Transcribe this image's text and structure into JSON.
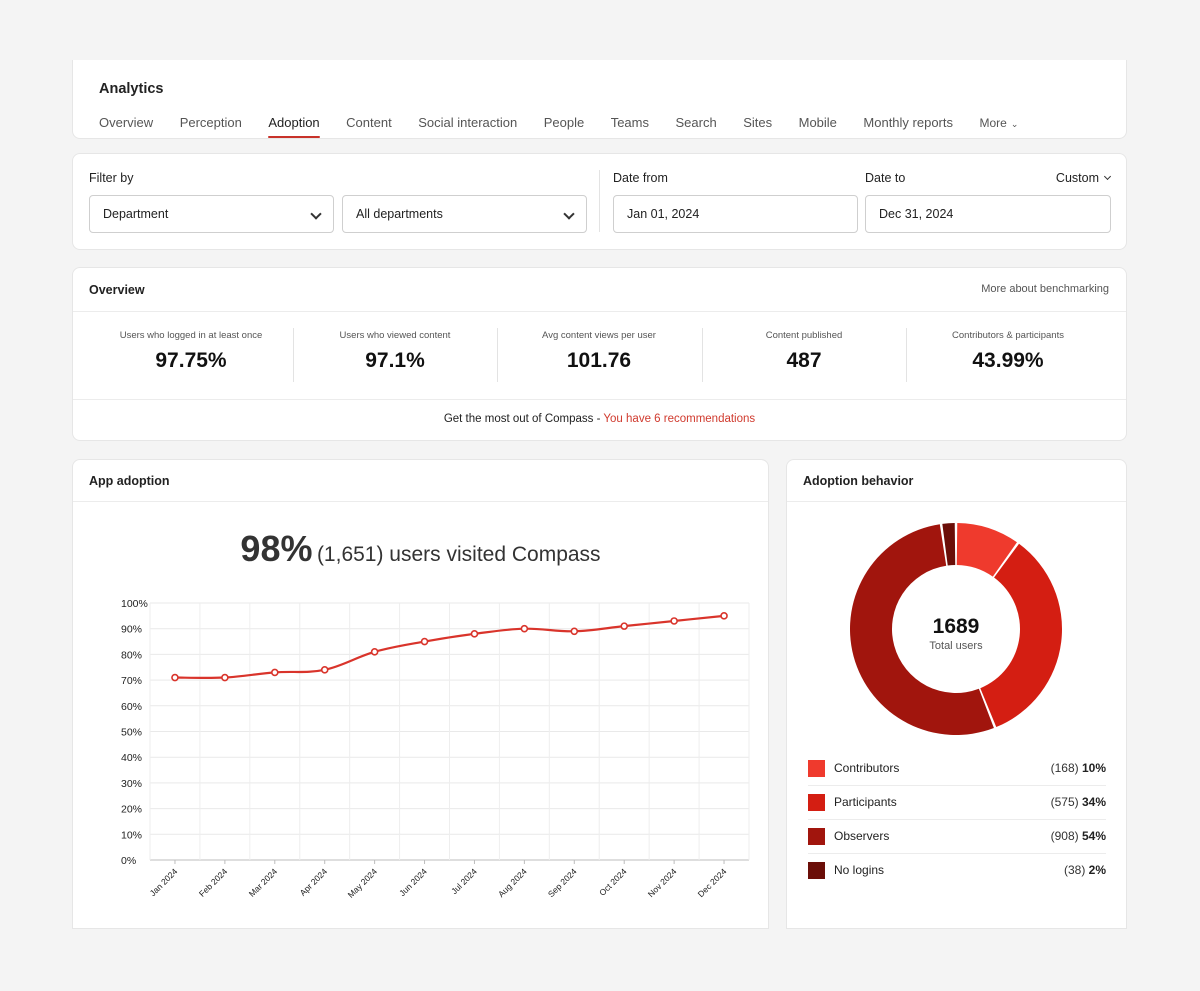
{
  "header": {
    "title": "Analytics",
    "tabs": [
      "Overview",
      "Perception",
      "Adoption",
      "Content",
      "Social interaction",
      "People",
      "Teams",
      "Search",
      "Sites",
      "Mobile",
      "Monthly reports"
    ],
    "more_label": "More",
    "active_tab": "Adoption"
  },
  "filter": {
    "filter_label": "Filter by",
    "filter_field": "Department",
    "filter_value": "All departments",
    "date_from_label": "Date from",
    "date_from": "Jan 01, 2024",
    "date_to_label": "Date to",
    "date_to": "Dec 31, 2024",
    "range_mode": "Custom"
  },
  "overview": {
    "title": "Overview",
    "benchmark_link": "More about benchmarking",
    "kpis": [
      {
        "label": "Users who logged in at least once",
        "value": "97.75%"
      },
      {
        "label": "Users who viewed content",
        "value": "97.1%"
      },
      {
        "label": "Avg content views per user",
        "value": "101.76"
      },
      {
        "label": "Content published",
        "value": "487"
      },
      {
        "label": "Contributors & participants",
        "value": "43.99%"
      }
    ],
    "reco_text": "Get the most out of Compass - ",
    "reco_link": "You have 6 recommendations"
  },
  "app_adoption": {
    "title": "App adoption",
    "headline_pct": "98%",
    "headline_rest": "(1,651) users visited Compass"
  },
  "chart_data": {
    "type": "line",
    "x": [
      "Jan 2024",
      "Feb 2024",
      "Mar 2024",
      "Apr 2024",
      "May 2024",
      "Jun 2024",
      "Jul 2024",
      "Aug 2024",
      "Sep 2024",
      "Oct 2024",
      "Nov 2024",
      "Dec 2024"
    ],
    "values": [
      71,
      71,
      73,
      74,
      81,
      85,
      88,
      90,
      89,
      91,
      93,
      95
    ],
    "yticks": [
      "0%",
      "10%",
      "20%",
      "30%",
      "40%",
      "50%",
      "60%",
      "70%",
      "80%",
      "90%",
      "100%"
    ],
    "ylim": [
      0,
      100
    ],
    "grid": true,
    "color": "#d9342b"
  },
  "behavior": {
    "title": "Adoption behavior",
    "total": "1689",
    "total_label": "Total users",
    "segments": [
      {
        "name": "Contributors",
        "count": "(168)",
        "pct": "10%",
        "value": 168,
        "color": "#ef3a2d"
      },
      {
        "name": "Participants",
        "count": "(575)",
        "pct": "34%",
        "value": 575,
        "color": "#d41e12"
      },
      {
        "name": "Observers",
        "count": "(908)",
        "pct": "54%",
        "value": 908,
        "color": "#a1150d"
      },
      {
        "name": "No logins",
        "count": "(38)",
        "pct": "2%",
        "value": 38,
        "color": "#6b0e08"
      }
    ]
  }
}
